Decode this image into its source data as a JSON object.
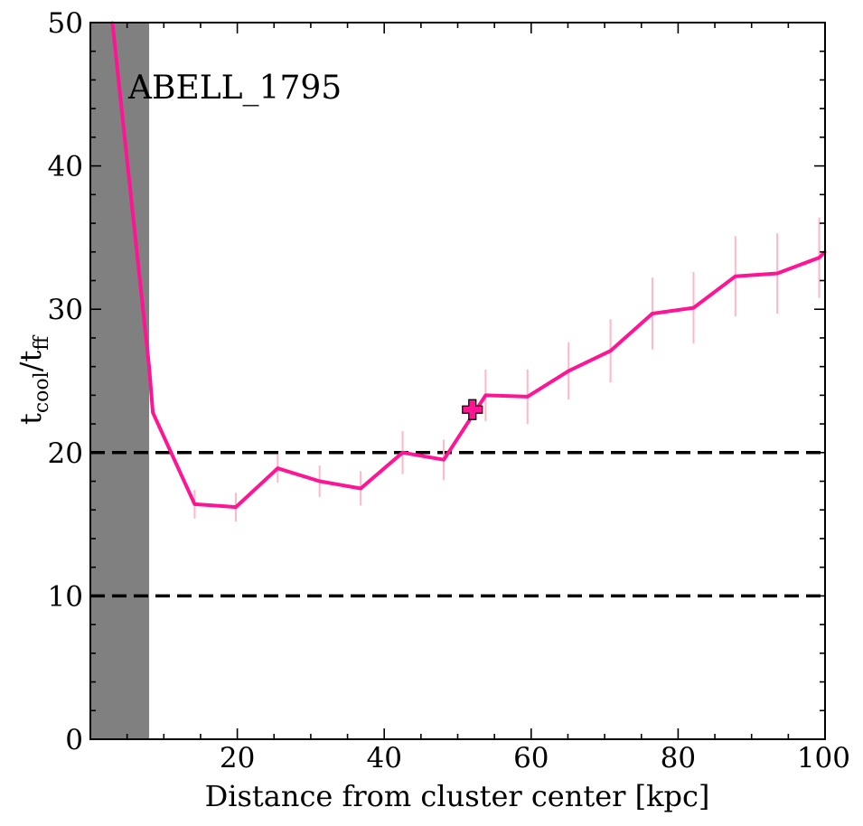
{
  "chart_data": {
    "type": "line",
    "annotation": "ABELL_1795",
    "xlabel": "Distance from cluster center [kpc]",
    "ylabel": {
      "base1": "t",
      "sub1": "cool",
      "slash": "/",
      "base2": "t",
      "sub2": "ff"
    },
    "xlim": [
      0,
      100
    ],
    "ylim": [
      0,
      50
    ],
    "x_ticks": [
      20,
      40,
      60,
      80,
      100
    ],
    "y_ticks": [
      0,
      10,
      20,
      30,
      40,
      50
    ],
    "x_minor_step": 5,
    "y_minor_step": 2,
    "shaded_region": {
      "x0": 0,
      "x1": 8,
      "color": "#808080"
    },
    "reference_lines": [
      {
        "y": 20,
        "style": "dashed",
        "color": "#000000"
      },
      {
        "y": 10,
        "style": "dashed",
        "color": "#000000"
      }
    ],
    "series": [
      {
        "color": "#ff1493",
        "errorbar_color": "#ffb6c8",
        "points": [
          {
            "x": 3,
            "y": 50.0
          },
          {
            "x": 8,
            "y": 26.0
          },
          {
            "x": 8.5,
            "y": 22.8
          },
          {
            "x": 14.2,
            "y": 16.4,
            "err": 1.0
          },
          {
            "x": 19.8,
            "y": 16.2,
            "err": 1.0
          },
          {
            "x": 25.5,
            "y": 18.9,
            "err": 1.0
          },
          {
            "x": 31.2,
            "y": 18.0,
            "err": 1.1
          },
          {
            "x": 36.8,
            "y": 17.5,
            "err": 1.2
          },
          {
            "x": 42.5,
            "y": 20.0,
            "err": 1.5
          },
          {
            "x": 48.1,
            "y": 19.5,
            "err": 1.4
          },
          {
            "x": 53.8,
            "y": 24.0,
            "err": 1.8
          },
          {
            "x": 59.5,
            "y": 23.9,
            "err": 1.9
          },
          {
            "x": 65.1,
            "y": 25.7,
            "err": 2.0
          },
          {
            "x": 70.8,
            "y": 27.1,
            "err": 2.2
          },
          {
            "x": 76.5,
            "y": 29.7,
            "err": 2.5
          },
          {
            "x": 82.1,
            "y": 30.1,
            "err": 2.5
          },
          {
            "x": 87.8,
            "y": 32.3,
            "err": 2.8
          },
          {
            "x": 93.5,
            "y": 32.5,
            "err": 2.8
          },
          {
            "x": 99.2,
            "y": 33.6,
            "err": 2.8
          },
          {
            "x": 100,
            "y": 34.0
          }
        ]
      }
    ],
    "marker": {
      "x": 52,
      "y": 23.0,
      "shape": "plus",
      "color": "#ff1493"
    }
  }
}
